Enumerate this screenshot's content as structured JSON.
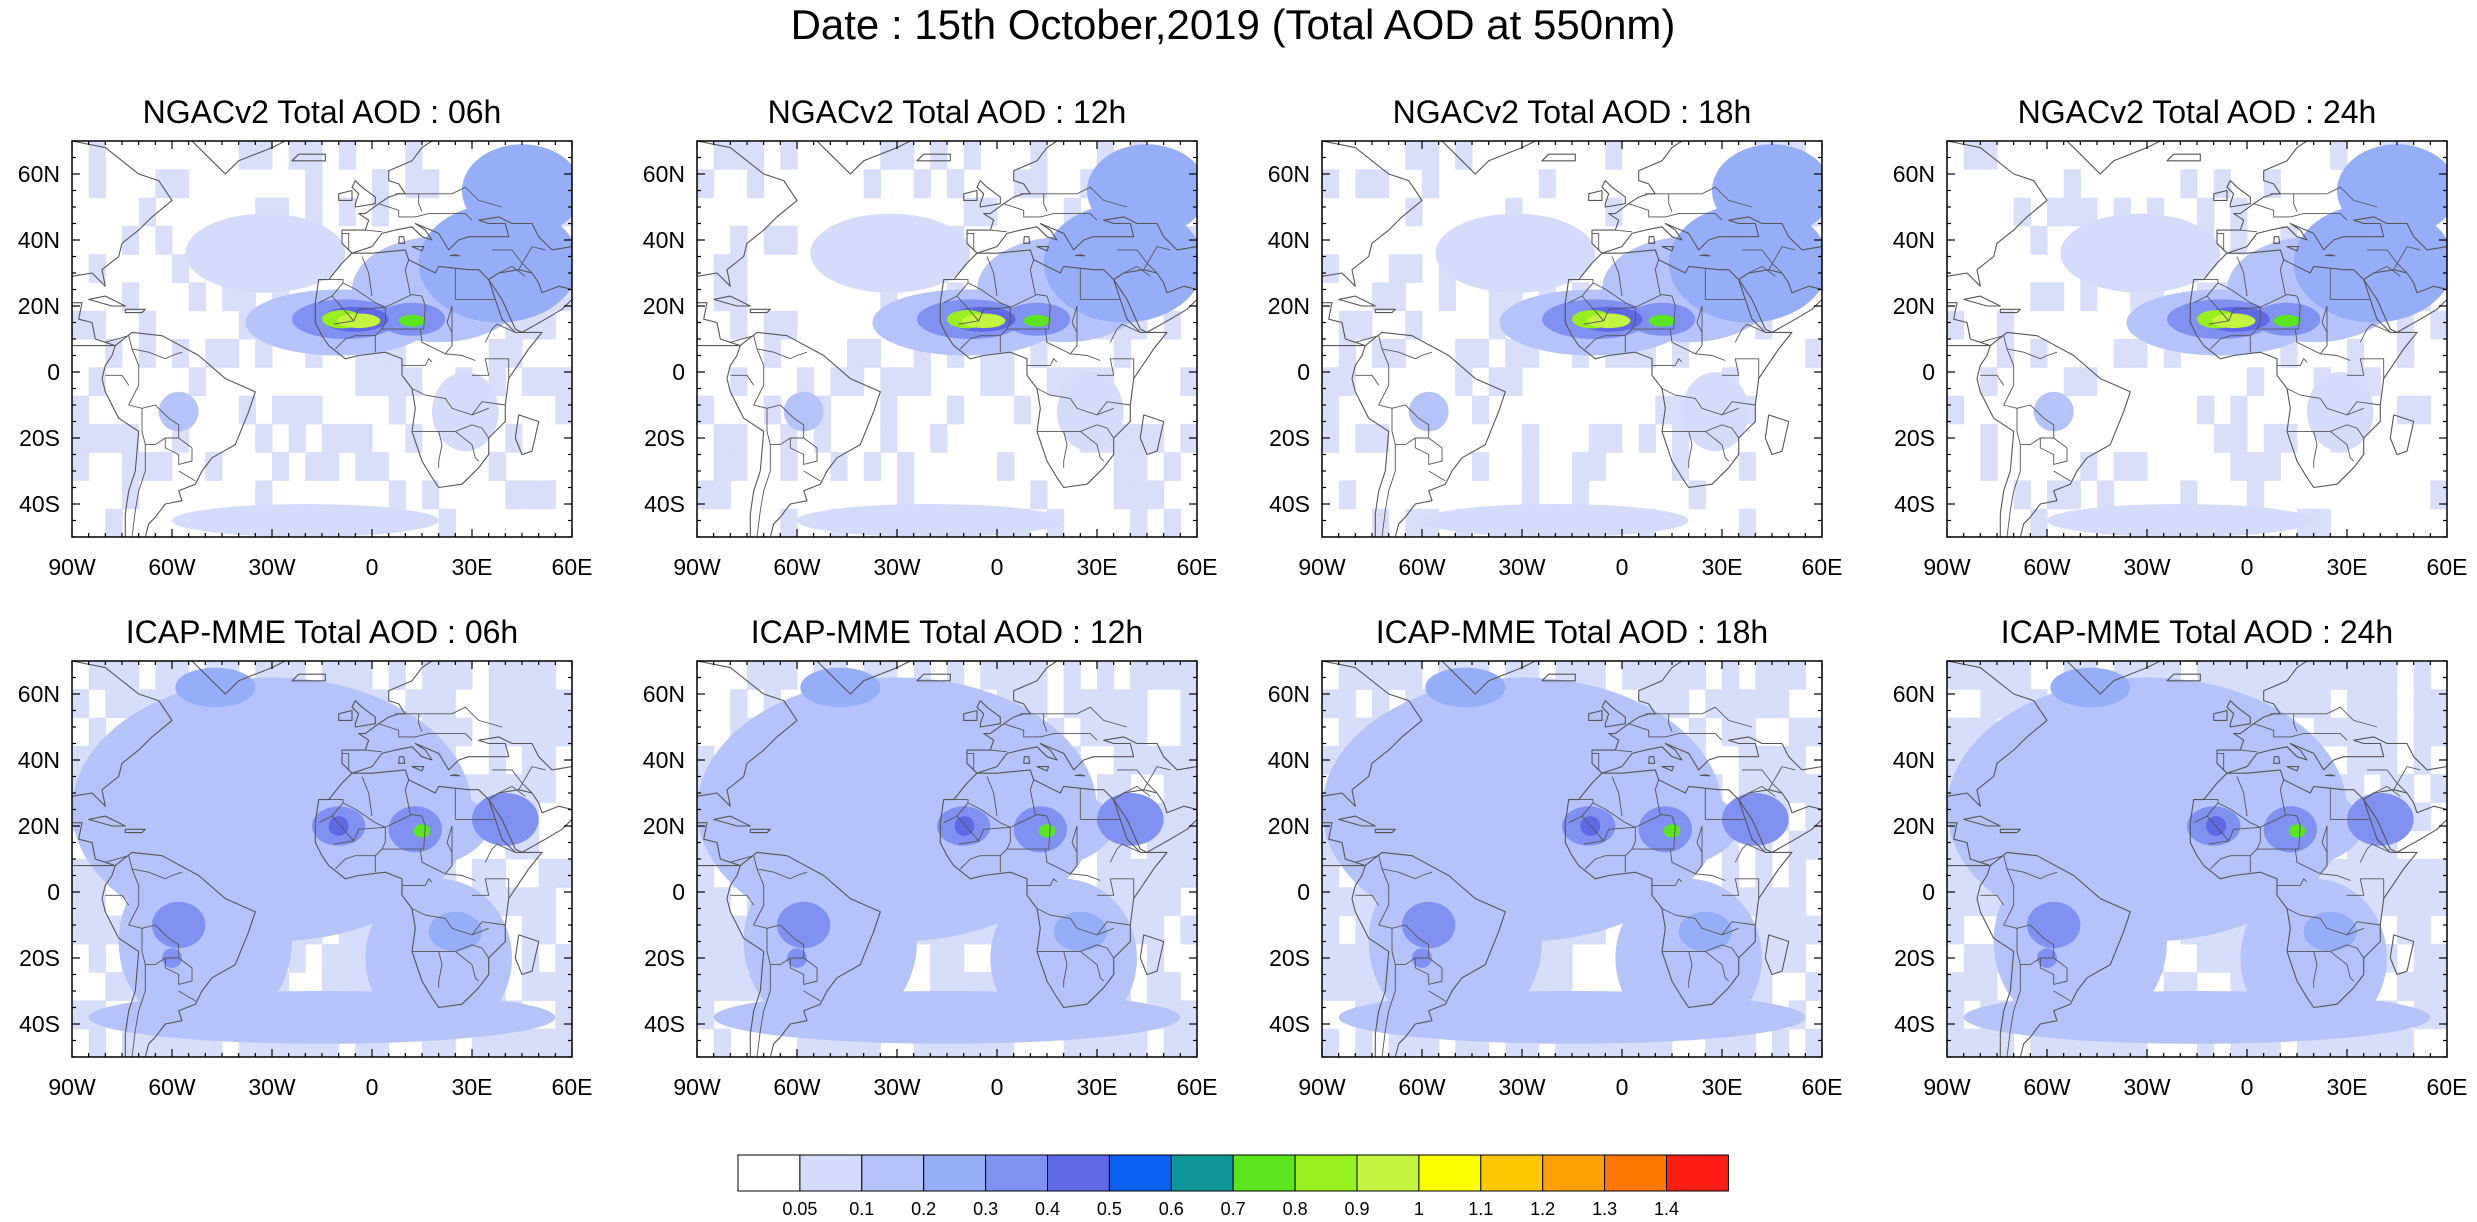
{
  "figure": {
    "title": "Date : 15th October,2019 (Total AOD at 550nm)"
  },
  "panels": [
    {
      "title": "NGACv2 Total AOD : 06h",
      "model": "NGACv2",
      "hour": "06h"
    },
    {
      "title": "NGACv2 Total AOD : 12h",
      "model": "NGACv2",
      "hour": "12h"
    },
    {
      "title": "NGACv2 Total AOD : 18h",
      "model": "NGACv2",
      "hour": "18h"
    },
    {
      "title": "NGACv2 Total AOD : 24h",
      "model": "NGACv2",
      "hour": "24h"
    },
    {
      "title": "ICAP-MME Total AOD : 06h",
      "model": "ICAP-MME",
      "hour": "06h"
    },
    {
      "title": "ICAP-MME Total AOD : 12h",
      "model": "ICAP-MME",
      "hour": "12h"
    },
    {
      "title": "ICAP-MME Total AOD : 18h",
      "model": "ICAP-MME",
      "hour": "18h"
    },
    {
      "title": "ICAP-MME Total AOD : 24h",
      "model": "ICAP-MME",
      "hour": "24h"
    }
  ],
  "axes": {
    "lon_range": [
      -90,
      60
    ],
    "lat_range": [
      -50,
      70
    ],
    "lon_ticks": [
      {
        "value": -90,
        "label": "90W"
      },
      {
        "value": -60,
        "label": "60W"
      },
      {
        "value": -30,
        "label": "30W"
      },
      {
        "value": 0,
        "label": "0"
      },
      {
        "value": 30,
        "label": "30E"
      },
      {
        "value": 60,
        "label": "60E"
      }
    ],
    "lat_ticks": [
      {
        "value": 60,
        "label": "60N"
      },
      {
        "value": 40,
        "label": "40N"
      },
      {
        "value": 20,
        "label": "20N"
      },
      {
        "value": 0,
        "label": "0"
      },
      {
        "value": -20,
        "label": "20S"
      },
      {
        "value": -40,
        "label": "40S"
      }
    ]
  },
  "colorbar": {
    "levels": [
      "0.05",
      "0.1",
      "0.2",
      "0.3",
      "0.4",
      "0.5",
      "0.6",
      "0.7",
      "0.8",
      "0.9",
      "1",
      "1.1",
      "1.2",
      "1.3",
      "1.4"
    ],
    "colors": [
      "#ffffff",
      "#d5dcfb",
      "#b4c3fa",
      "#95aef8",
      "#7f92f2",
      "#5e69e6",
      "#0a60f0",
      "#0f9696",
      "#5ae61a",
      "#96f01e",
      "#c3f540",
      "#ffff00",
      "#ffc800",
      "#ffa000",
      "#ff7800",
      "#ff1e14"
    ]
  },
  "colors": {
    "land_outline": "#555555",
    "background": "#ffffff"
  }
}
